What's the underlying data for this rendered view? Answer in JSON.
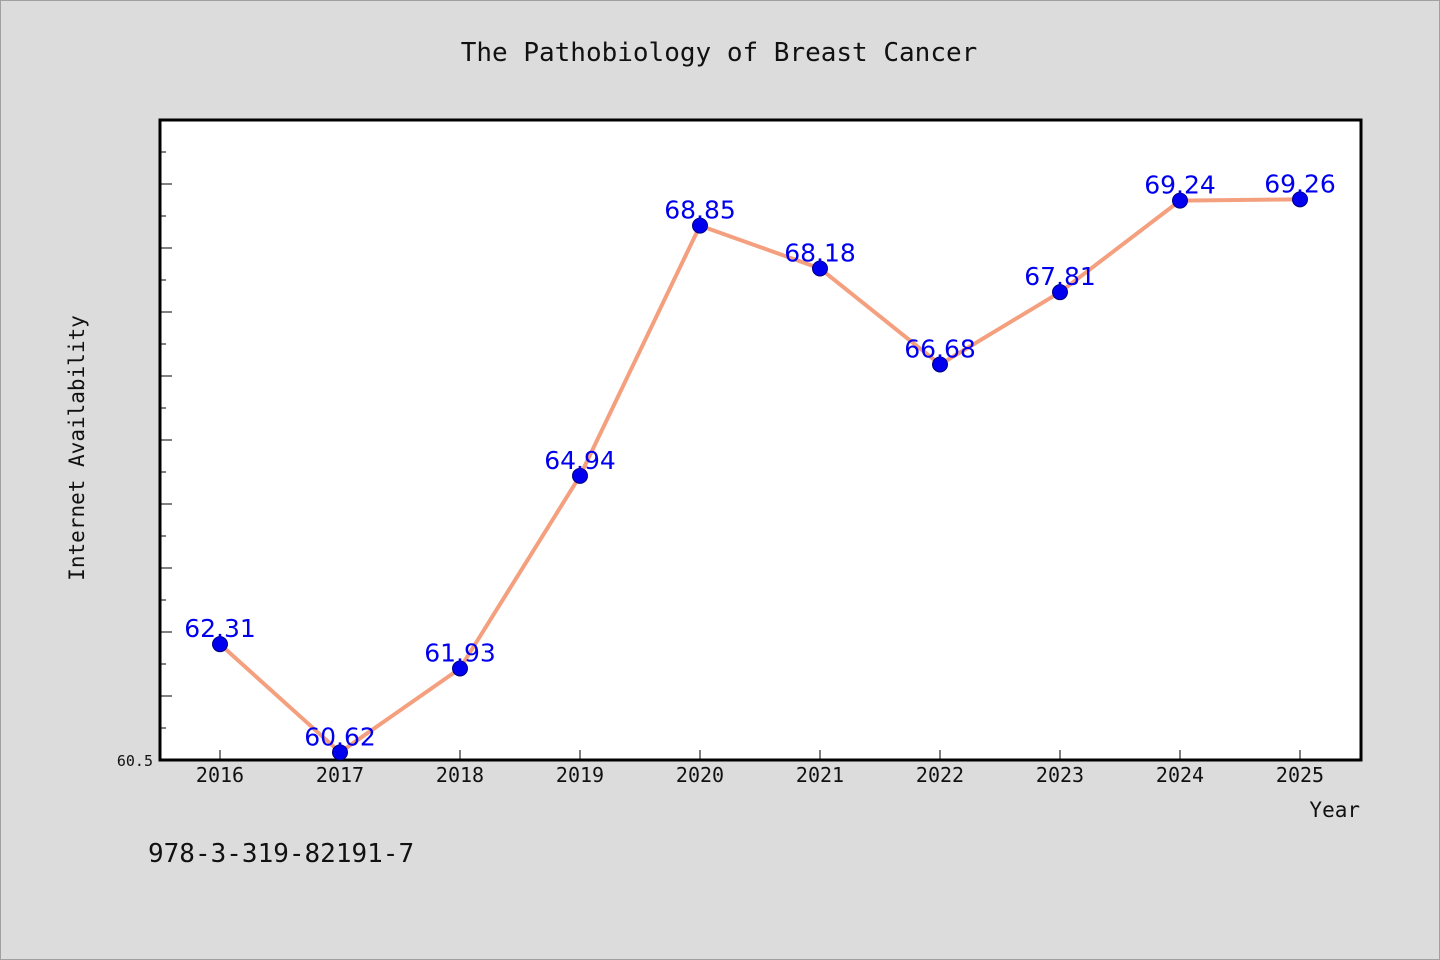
{
  "chart_data": {
    "type": "line",
    "title": "The Pathobiology of Breast Cancer",
    "xlabel": "Year",
    "ylabel": "Internet Availability",
    "categories": [
      "2016",
      "2017",
      "2018",
      "2019",
      "2020",
      "2021",
      "2022",
      "2023",
      "2024",
      "2025"
    ],
    "series": [
      {
        "values": [
          62.31,
          60.62,
          61.93,
          64.94,
          68.85,
          68.18,
          66.68,
          67.81,
          69.24,
          69.26
        ],
        "data_labels": [
          "62.31",
          "60.62",
          "61.93",
          "64.94",
          "68.85",
          "68.18",
          "66.68",
          "67.81",
          "69.24",
          "69.26"
        ]
      }
    ],
    "ylim": [
      60.5,
      70.5
    ],
    "yticks_labeled": [
      "60.5"
    ],
    "grid": false,
    "legend": "none",
    "colors": {
      "line": "#f4a07f",
      "marker": "#0000ee",
      "marker_edge": "#000080",
      "data_label": "#0000ee",
      "plot_background": "#ffffff",
      "figure_background": "#dcdcdc"
    }
  },
  "footer": {
    "text": "978-3-319-82191-7"
  }
}
